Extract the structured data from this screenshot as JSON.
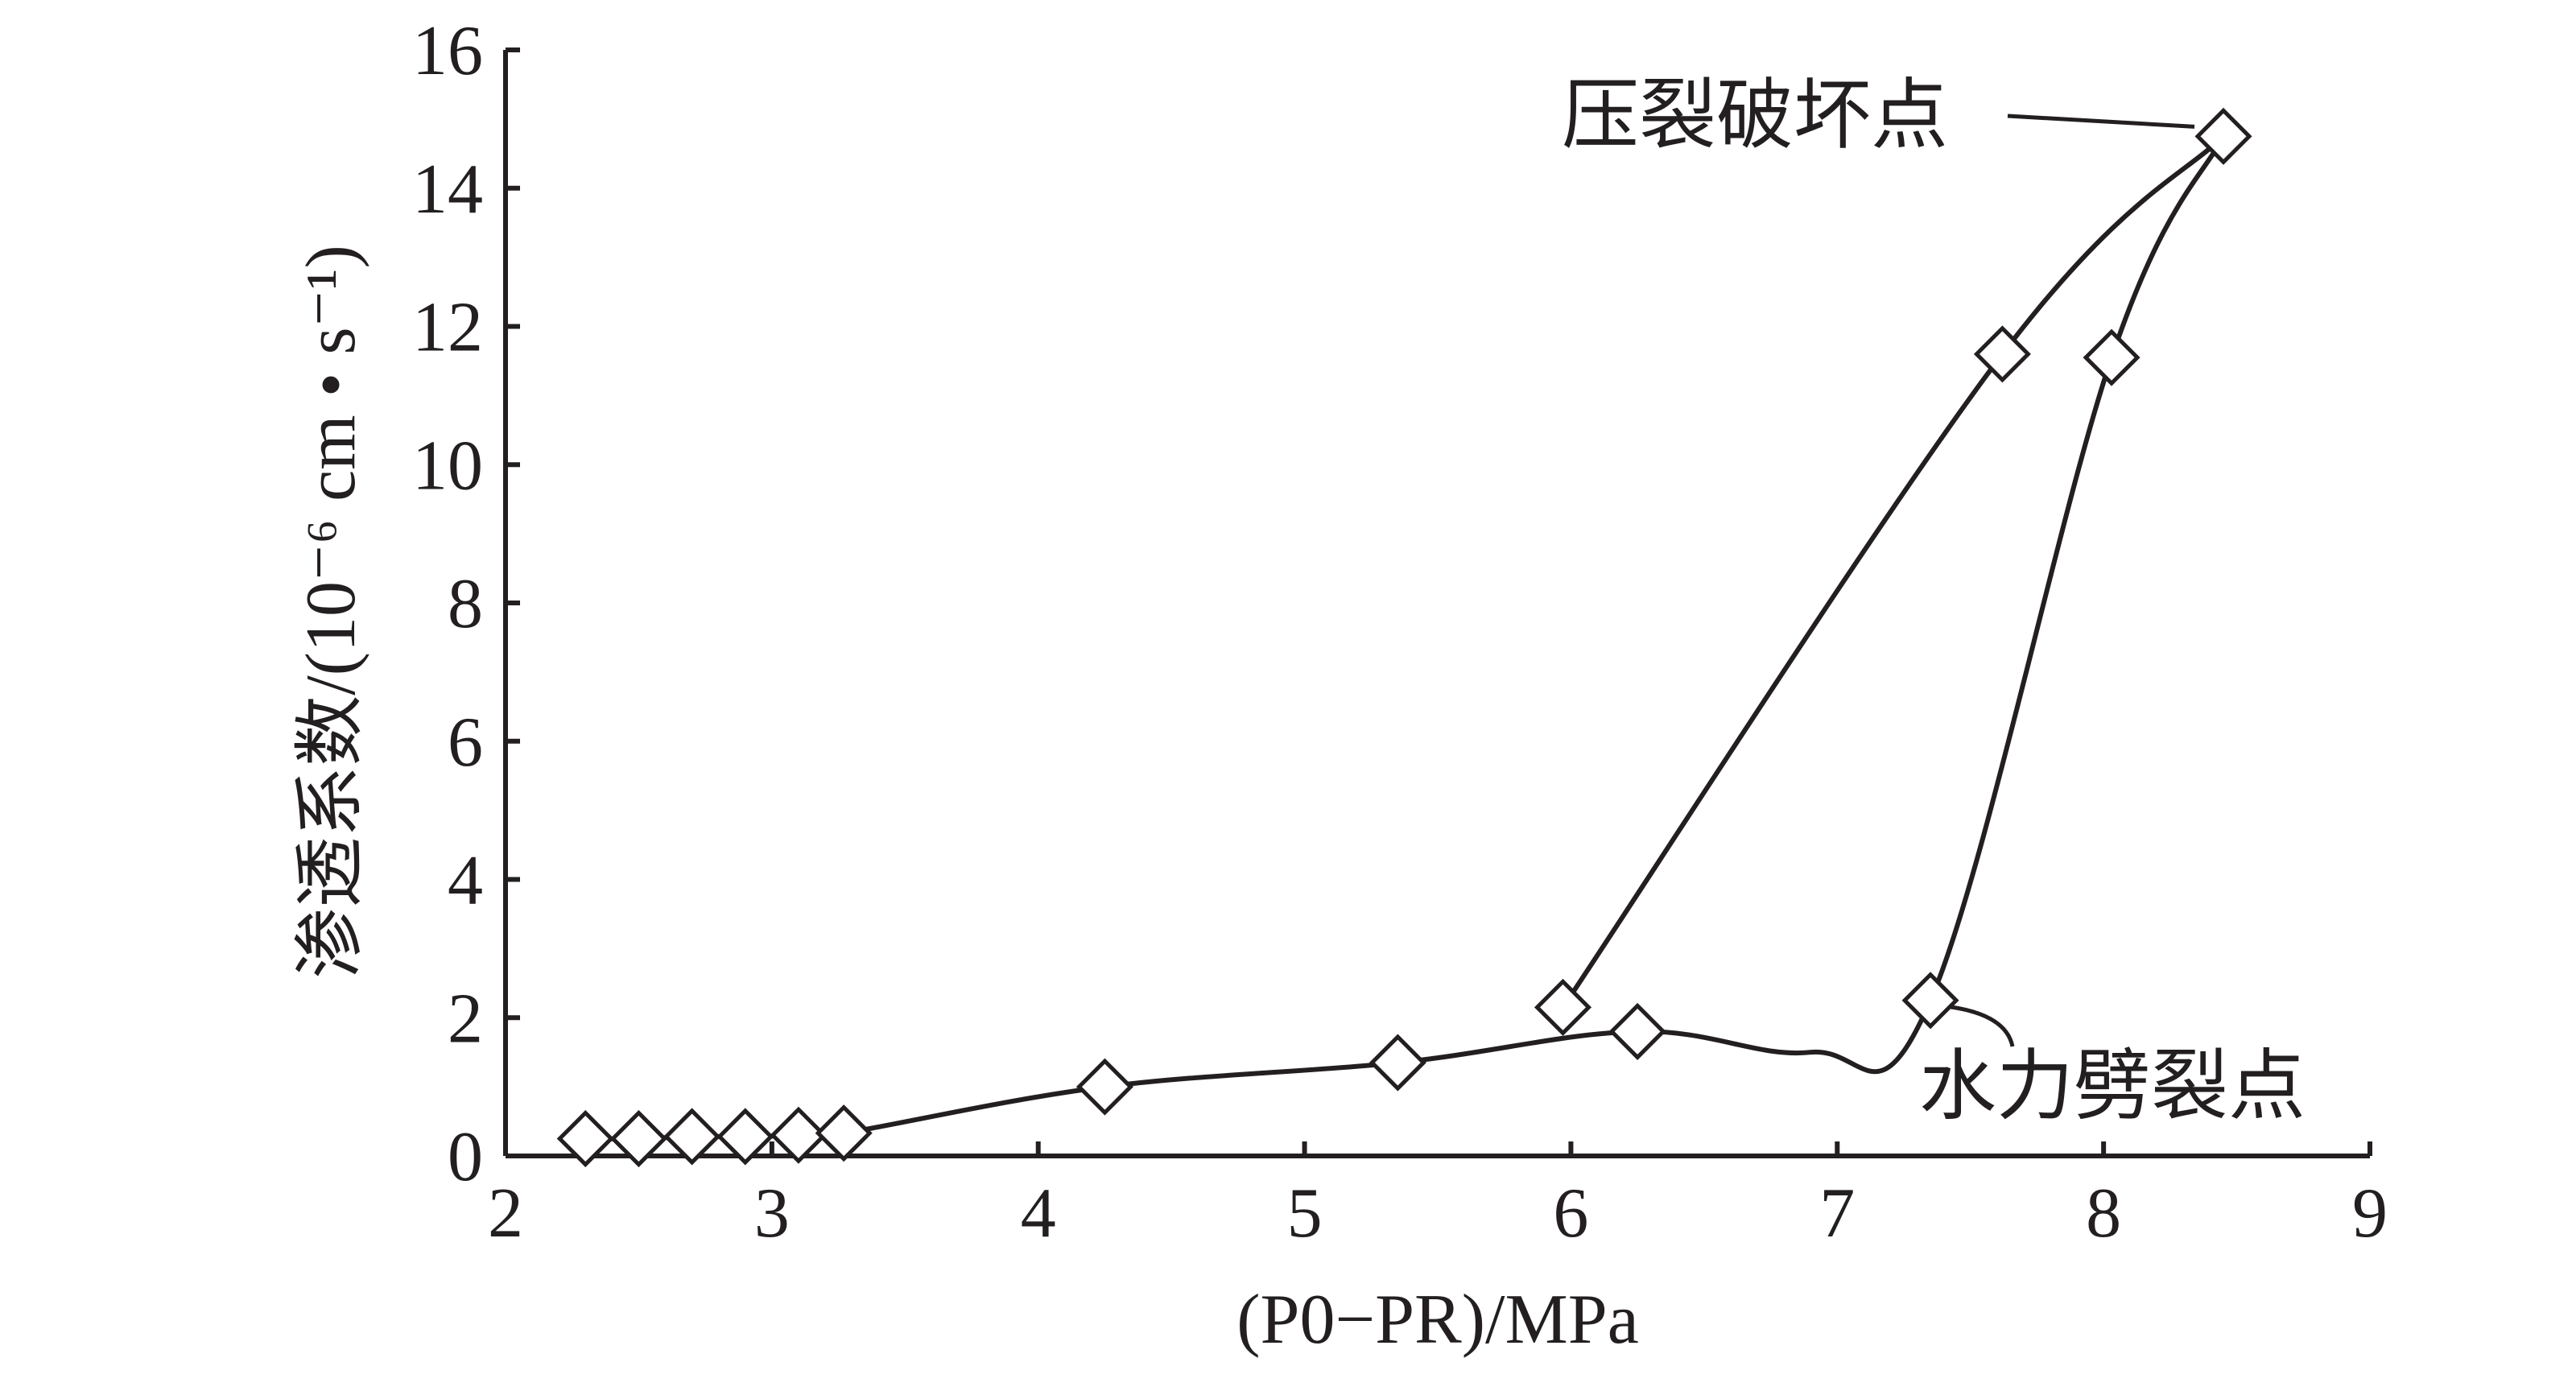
{
  "chart_data": {
    "type": "line",
    "xlabel": "(P0−PR)/MPa",
    "ylabel": "渗透系数/(10⁻⁶ cm • s⁻¹)",
    "xlim": [
      2,
      9
    ],
    "ylim": [
      0,
      16
    ],
    "xticks": [
      "2",
      "3",
      "4",
      "5",
      "6",
      "7",
      "8",
      "9"
    ],
    "yticks": [
      "0",
      "2",
      "4",
      "6",
      "8",
      "10",
      "12",
      "14",
      "16"
    ],
    "grid": false,
    "series": [
      {
        "points": [
          {
            "x": 2.3,
            "y": 0.25
          },
          {
            "x": 2.5,
            "y": 0.25
          },
          {
            "x": 2.7,
            "y": 0.28
          },
          {
            "x": 2.9,
            "y": 0.28
          },
          {
            "x": 3.1,
            "y": 0.3
          },
          {
            "x": 3.27,
            "y": 0.33
          },
          {
            "x": 4.25,
            "y": 1.0
          },
          {
            "x": 5.35,
            "y": 1.35
          },
          {
            "x": 6.25,
            "y": 1.8
          },
          {
            "x": 6.9,
            "y": 1.5
          },
          {
            "x": 7.35,
            "y": 2.25
          },
          {
            "x": 8.03,
            "y": 11.55
          },
          {
            "x": 8.45,
            "y": 14.75
          }
        ],
        "markers": [
          {
            "x": 2.3,
            "y": 0.25
          },
          {
            "x": 2.5,
            "y": 0.25
          },
          {
            "x": 2.7,
            "y": 0.28
          },
          {
            "x": 2.9,
            "y": 0.28
          },
          {
            "x": 3.1,
            "y": 0.3
          },
          {
            "x": 3.27,
            "y": 0.33
          },
          {
            "x": 4.25,
            "y": 1.0
          },
          {
            "x": 5.35,
            "y": 1.35
          },
          {
            "x": 6.25,
            "y": 1.8
          },
          {
            "x": 7.35,
            "y": 2.25
          },
          {
            "x": 8.03,
            "y": 11.55
          },
          {
            "x": 8.45,
            "y": 14.75
          }
        ]
      },
      {
        "points": [
          {
            "x": 5.97,
            "y": 2.15
          },
          {
            "x": 7.62,
            "y": 11.6
          },
          {
            "x": 8.45,
            "y": 14.75
          }
        ],
        "markers": [
          {
            "x": 5.97,
            "y": 2.15
          },
          {
            "x": 7.62,
            "y": 11.6
          }
        ]
      }
    ],
    "annotations": [
      {
        "text": "压裂破坏点",
        "target": {
          "x": 8.45,
          "y": 14.75
        }
      },
      {
        "text": "水力劈裂点",
        "target": {
          "x": 7.35,
          "y": 2.25
        }
      }
    ]
  }
}
